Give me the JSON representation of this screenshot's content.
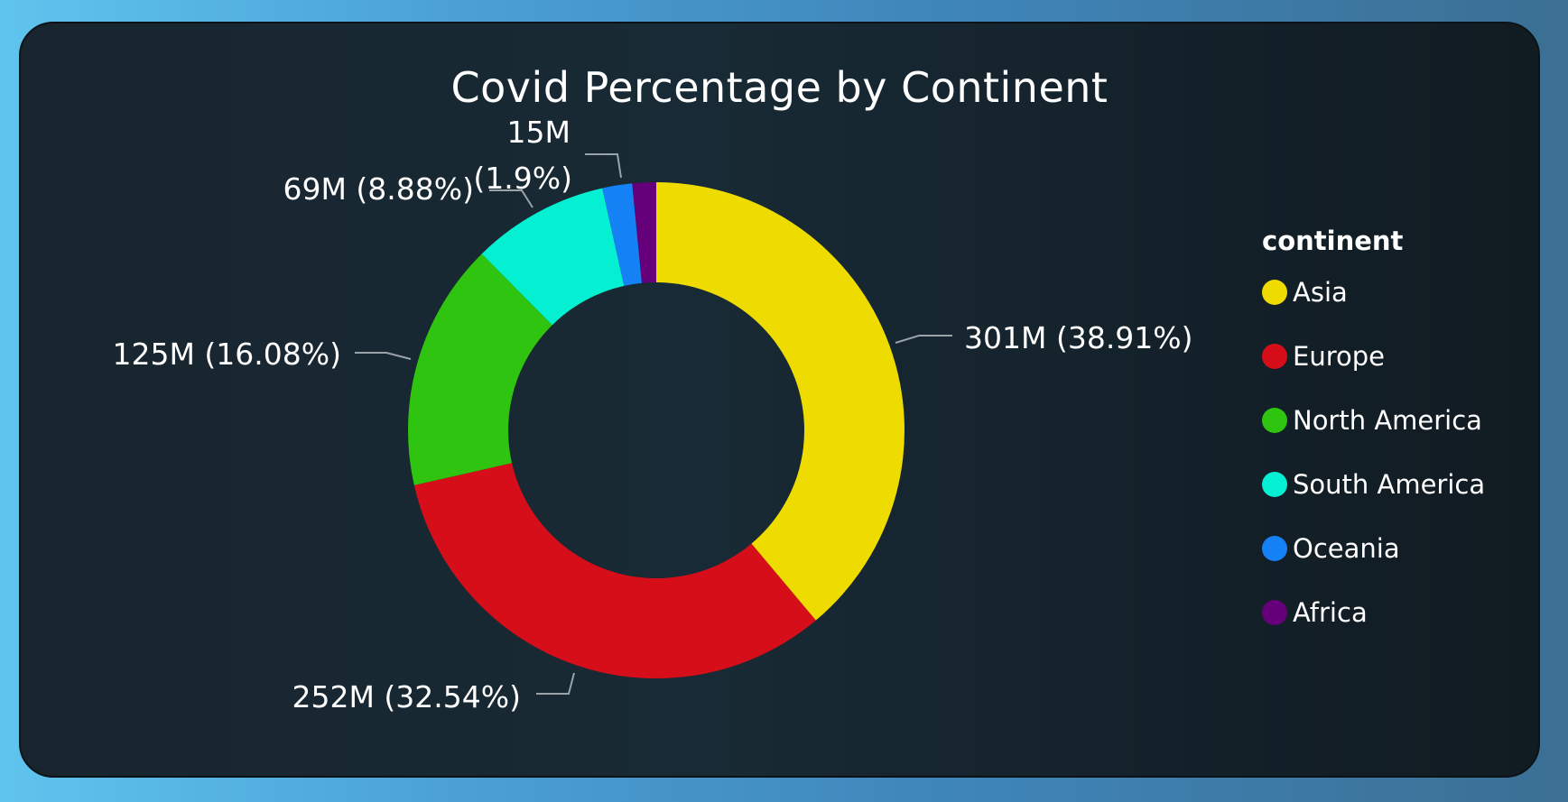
{
  "chart_data": {
    "type": "pie",
    "donut": true,
    "title": "Covid Percentage by Continent",
    "legend_title": "continent",
    "legend_position": "right",
    "categories": [
      "Asia",
      "Europe",
      "North America",
      "South America",
      "Oceania",
      "Africa"
    ],
    "values": [
      301,
      252,
      125,
      69,
      15,
      12
    ],
    "value_unit": "M",
    "percentages": [
      38.91,
      32.54,
      16.08,
      8.88,
      1.9,
      1.59
    ],
    "colors": [
      "#eedb00",
      "#d60e19",
      "#2ec40f",
      "#05f0d2",
      "#1482f4",
      "#66007a"
    ],
    "data_labels": [
      "301M (38.91%)",
      "252M (32.54%)",
      "125M (16.08%)",
      "69M (8.88%)",
      "15M (1.9%)",
      ""
    ]
  }
}
